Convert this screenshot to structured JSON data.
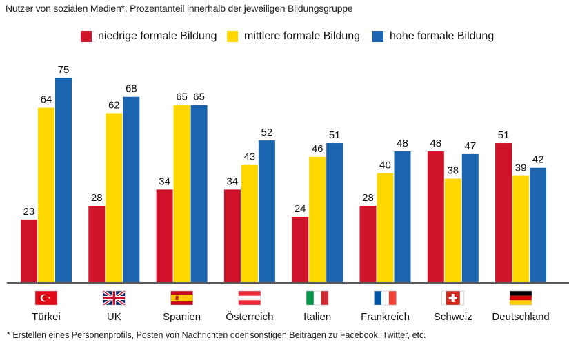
{
  "subtitle": "Nutzer von sozialen Medien*, Prozentanteil innerhalb der jeweiligen Bildungsgruppe",
  "footnote": "*  Erstellen eines Personenprofils, Posten von Nachrichten oder sonstigen Beiträgen zu Facebook, Twitter, etc.",
  "colors": {
    "low": "#d0122a",
    "mid": "#ffd800",
    "high": "#1a64b0",
    "axis": "#222222"
  },
  "chart_data": {
    "type": "bar",
    "title": "Nutzer von sozialen Medien*, Prozentanteil innerhalb der jeweiligen Bildungsgruppe",
    "xlabel": "",
    "ylabel": "",
    "ylim": [
      0,
      80
    ],
    "legend_position": "top",
    "grid": false,
    "categories": [
      "Türkei",
      "UK",
      "Spanien",
      "Österreich",
      "Italien",
      "Frankreich",
      "Schweiz",
      "Deutschland"
    ],
    "flags": [
      "tr-flag-icon",
      "uk-flag-icon",
      "es-flag-icon",
      "at-flag-icon",
      "it-flag-icon",
      "fr-flag-icon",
      "ch-flag-icon",
      "de-flag-icon"
    ],
    "series": [
      {
        "name": "niedrige formale Bildung",
        "key": "low",
        "values": [
          23,
          28,
          34,
          34,
          24,
          28,
          48,
          51
        ]
      },
      {
        "name": "mittlere formale Bildung",
        "key": "mid",
        "values": [
          64,
          62,
          65,
          43,
          46,
          40,
          38,
          39
        ]
      },
      {
        "name": "hohe formale Bildung",
        "key": "high",
        "values": [
          75,
          68,
          65,
          52,
          51,
          48,
          47,
          42
        ]
      }
    ]
  }
}
